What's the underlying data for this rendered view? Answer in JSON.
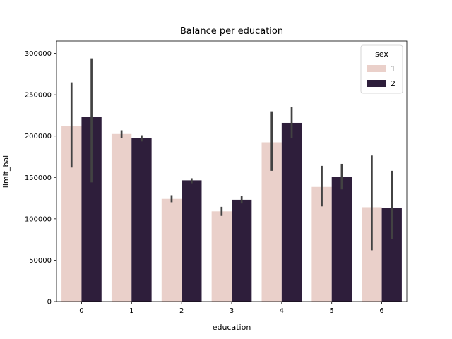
{
  "chart_data": {
    "type": "bar",
    "title": "Balance per education",
    "xlabel": "education",
    "ylabel": "limit_bal",
    "categories": [
      "0",
      "1",
      "2",
      "3",
      "4",
      "5",
      "6"
    ],
    "series": [
      {
        "name": "1",
        "color": "#ead0ca",
        "values": [
          212500,
          202500,
          124000,
          109000,
          192500,
          138500,
          114000
        ],
        "ci_low": [
          162000,
          197500,
          120000,
          103500,
          158000,
          115000,
          62000
        ],
        "ci_high": [
          265000,
          207000,
          128500,
          114500,
          230000,
          164000,
          176500
        ]
      },
      {
        "name": "2",
        "color": "#2e1e3b",
        "values": [
          223000,
          197500,
          146500,
          123000,
          216000,
          151000,
          113000
        ],
        "ci_low": [
          144000,
          193500,
          143000,
          118500,
          197500,
          135500,
          76000
        ],
        "ci_high": [
          294000,
          201000,
          149000,
          127500,
          235000,
          166500,
          158000
        ]
      }
    ],
    "ylim": [
      0,
      315000
    ],
    "yticks": [
      0,
      50000,
      100000,
      150000,
      200000,
      250000,
      300000
    ],
    "grid": false,
    "legend": {
      "title": "sex",
      "placement": "top-right"
    }
  }
}
